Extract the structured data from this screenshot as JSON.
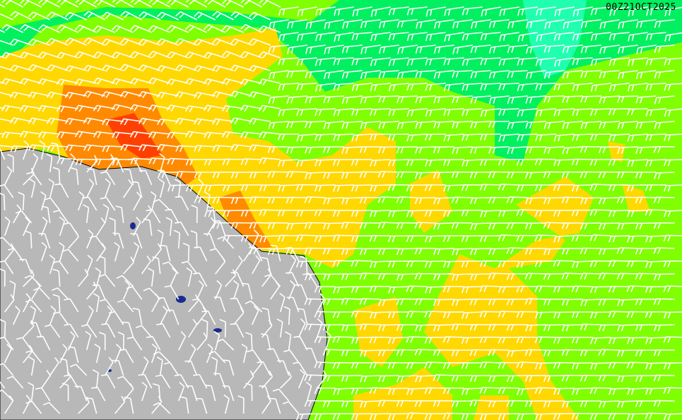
{
  "timestamp": "00Z21OCT2025",
  "colors": {
    "ocean_base": "#7fff00",
    "band_green": "#00f060",
    "band_teal": "#20ffb0",
    "band_yellow": "#ffd800",
    "band_orange": "#ff8a00",
    "band_red": "#ff4000",
    "land": "#b8b8b8",
    "coast": "#000000",
    "barbs": "#ffffff",
    "lakes": "#1a2a90"
  },
  "layers": [
    "wind-speed-shading",
    "wind-barbs",
    "land-relief",
    "coastline"
  ]
}
